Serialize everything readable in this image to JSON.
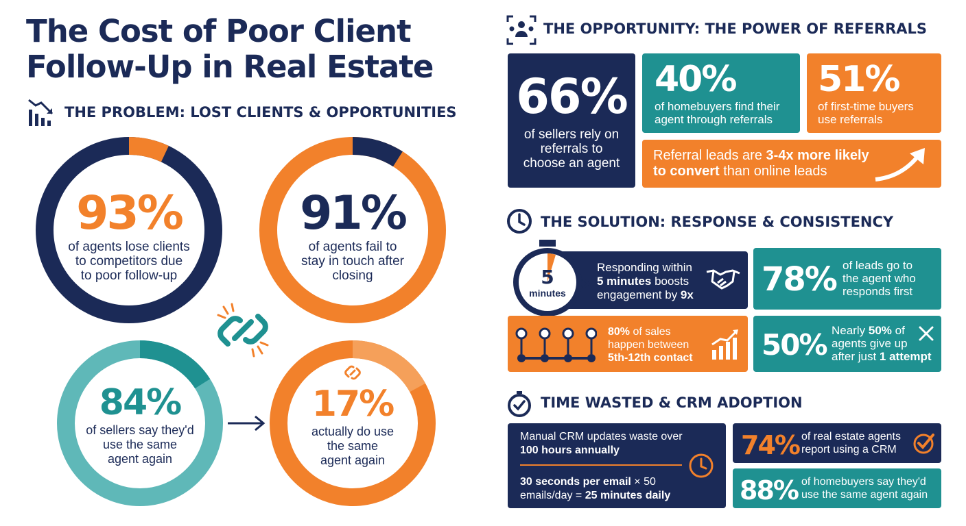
{
  "title": {
    "line1": "The Cost of Poor Client",
    "line2": "Follow-Up in Real Estate"
  },
  "problem": {
    "heading": "THE PROBLEM: LOST CLIENTS & OPPORTUNITIES",
    "rings": [
      {
        "value": "93%",
        "line1": "of agents lose clients",
        "line2": "to competitors due",
        "line3": "to poor follow-up",
        "fraction": 0.93
      },
      {
        "value": "91%",
        "line1": "of agents fail to",
        "line2": "stay in touch after",
        "line3": "closing",
        "fraction": 0.91
      },
      {
        "value": "84%",
        "line1": "of sellers say they'd",
        "line2": "use the same",
        "line3": "agent again",
        "fraction": 0.84
      },
      {
        "value": "17%",
        "line1": "actually do use",
        "line2": "the same",
        "line3": "agent again",
        "fraction": 0.17
      }
    ]
  },
  "opportunity": {
    "heading": "THE OPPORTUNITY: THE POWER OF REFERRALS",
    "card1": {
      "value": "66%",
      "line1": "of sellers rely on",
      "line2": "referrals to",
      "line3": "choose an agent"
    },
    "card2": {
      "value": "40%",
      "line1": "of homebuyers find their",
      "line2": "agent through referrals"
    },
    "card3": {
      "value": "51%",
      "line1": "of first-time buyers",
      "line2": "use referrals"
    },
    "banner": {
      "pre": "Referral leads are ",
      "bold1": "3-4x more likely",
      "bold2": "to convert",
      "post": " than online leads"
    }
  },
  "solution": {
    "heading": "THE SOLUTION: RESPONSE & CONSISTENCY",
    "timer": {
      "number": "5",
      "unit": "minutes"
    },
    "respond": {
      "l1": "Responding within",
      "l2b": "5 minutes",
      "l2": " boosts",
      "l3": "engagement by ",
      "l3b": "9x"
    },
    "leads": {
      "value": "78%",
      "l1": "of leads go to",
      "l2": "the agent who",
      "l3": "responds first"
    },
    "sales": {
      "l1b": "80%",
      "l1": " of sales",
      "l2": "happen between",
      "l3b": "5th-12th contact"
    },
    "giveup": {
      "value": "50%",
      "l1": "Nearly ",
      "l1b": "50%",
      "l1c": " of",
      "l2": "agents give up",
      "l3": "after just ",
      "l3b": "1 attempt"
    }
  },
  "crm": {
    "heading": "TIME WASTED & CRM ADOPTION",
    "waste": {
      "l1": "Manual CRM updates waste over",
      "l2b": "100 hours annually",
      "l3b": "30 seconds per email",
      "l3": " × 50",
      "l4": "emails/day = ",
      "l4b": "25 minutes daily"
    },
    "agents": {
      "value": "74%",
      "l1": "of real estate agents",
      "l2": "report using a CRM"
    },
    "buyers": {
      "value": "88%",
      "l1": "of homebuyers say they'd",
      "l2": "use the same agent again"
    }
  },
  "colors": {
    "navy": "#1b2a57",
    "teal": "#1f9191",
    "orange": "#f2812b",
    "light_teal": "#5fb8b8"
  }
}
